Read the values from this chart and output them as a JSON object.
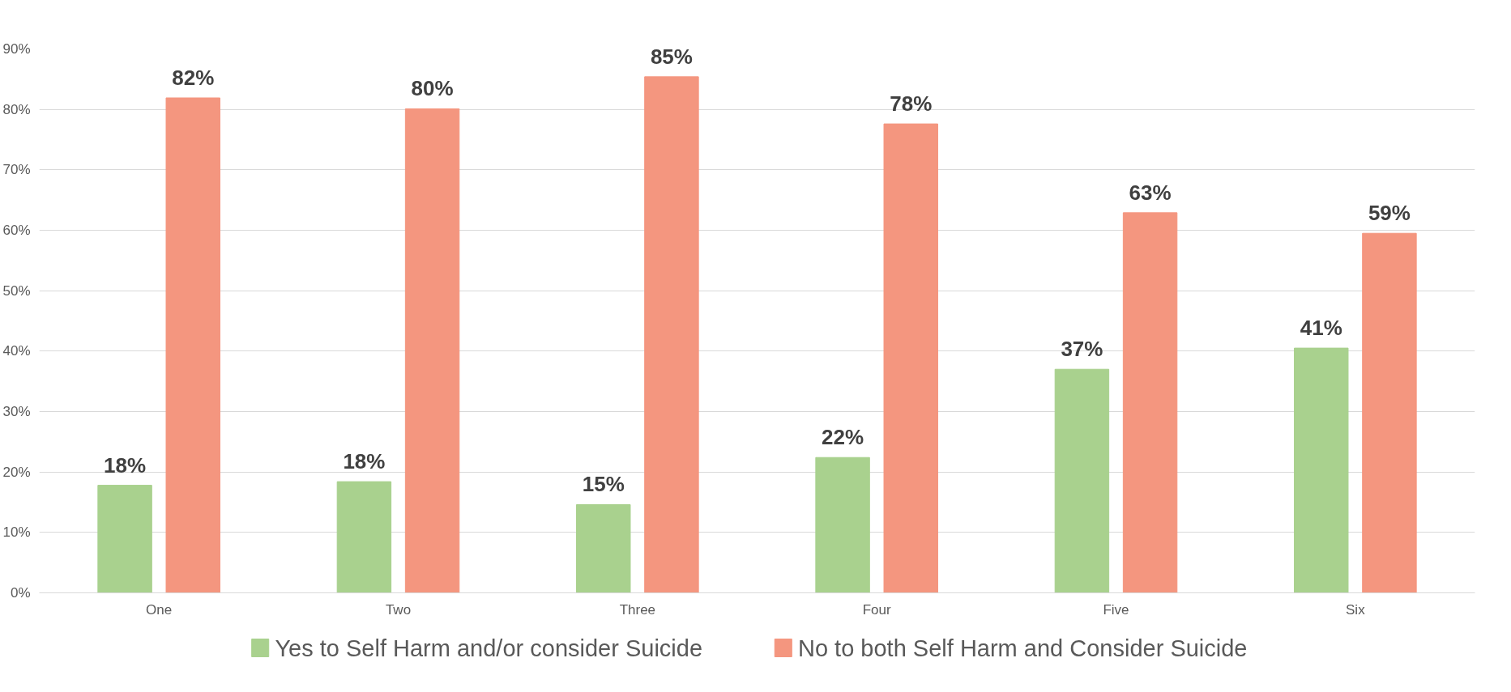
{
  "chart_data": {
    "type": "bar",
    "categories": [
      "One",
      "Two",
      "Three",
      "Four",
      "Five",
      "Six"
    ],
    "series": [
      {
        "name": "Yes to Self Harm and/or consider Suicide",
        "color": "#a9d18e",
        "values": [
          17.8,
          18.4,
          14.6,
          22.4,
          37.0,
          40.5
        ],
        "value_labels": [
          "18%",
          "18%",
          "15%",
          "22%",
          "37%",
          "41%"
        ]
      },
      {
        "name": "No to both Self Harm and Consider Suicide",
        "color": "#f4967f",
        "values": [
          81.9,
          80.1,
          85.4,
          77.6,
          62.9,
          59.5
        ],
        "value_labels": [
          "82%",
          "80%",
          "85%",
          "78%",
          "63%",
          "59%"
        ]
      }
    ],
    "ylim": [
      0,
      90
    ],
    "yticks": [
      {
        "value": 0,
        "label": "0%"
      },
      {
        "value": 10,
        "label": "10%"
      },
      {
        "value": 20,
        "label": "20%"
      },
      {
        "value": 30,
        "label": "30%"
      },
      {
        "value": 40,
        "label": "40%"
      },
      {
        "value": 50,
        "label": "50%"
      },
      {
        "value": 60,
        "label": "60%"
      },
      {
        "value": 70,
        "label": "70%"
      },
      {
        "value": 80,
        "label": "80%"
      },
      {
        "value": 90,
        "label": "90%"
      }
    ],
    "grid": "y",
    "legend": "bottom"
  }
}
